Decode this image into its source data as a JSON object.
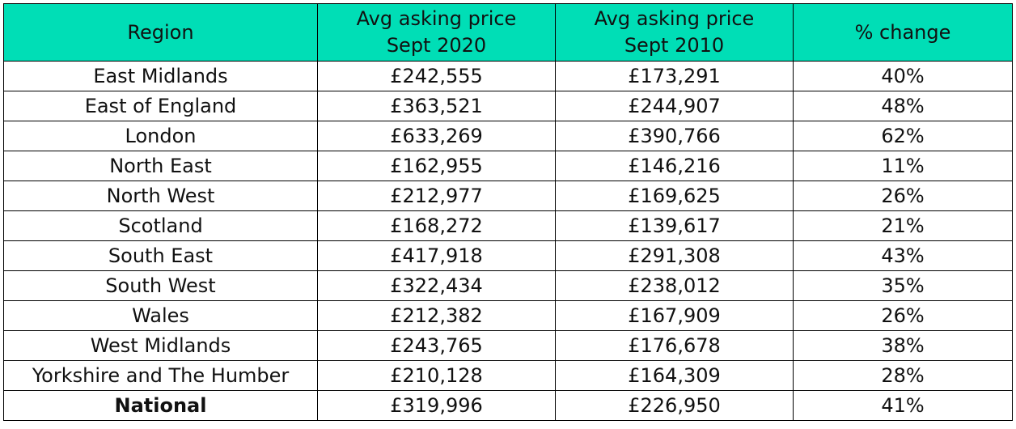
{
  "table": {
    "headers": [
      {
        "line1": "Region",
        "line2": ""
      },
      {
        "line1": "Avg asking price",
        "line2": "Sept 2020"
      },
      {
        "line1": "Avg asking price",
        "line2": "Sept 2010"
      },
      {
        "line1": "% change",
        "line2": ""
      }
    ],
    "rows": [
      {
        "region": "East Midlands",
        "price_2020": "£242,555",
        "price_2010": "£173,291",
        "change": "40%"
      },
      {
        "region": "East of England",
        "price_2020": "£363,521",
        "price_2010": "£244,907",
        "change": "48%"
      },
      {
        "region": "London",
        "price_2020": "£633,269",
        "price_2010": "£390,766",
        "change": "62%"
      },
      {
        "region": "North East",
        "price_2020": "£162,955",
        "price_2010": "£146,216",
        "change": "11%"
      },
      {
        "region": "North West",
        "price_2020": "£212,977",
        "price_2010": "£169,625",
        "change": "26%"
      },
      {
        "region": "Scotland",
        "price_2020": "£168,272",
        "price_2010": "£139,617",
        "change": "21%"
      },
      {
        "region": "South East",
        "price_2020": "£417,918",
        "price_2010": "£291,308",
        "change": "43%"
      },
      {
        "region": "South West",
        "price_2020": "£322,434",
        "price_2010": "£238,012",
        "change": "35%"
      },
      {
        "region": "Wales",
        "price_2020": "£212,382",
        "price_2010": "£167,909",
        "change": "26%"
      },
      {
        "region": "West Midlands",
        "price_2020": "£243,765",
        "price_2010": "£176,678",
        "change": "38%"
      },
      {
        "region": "Yorkshire and The Humber",
        "price_2020": "£210,128",
        "price_2010": "£164,309",
        "change": "28%"
      }
    ],
    "total": {
      "region": "National",
      "price_2020": "£319,996",
      "price_2010": "£226,950",
      "change": "41%"
    }
  },
  "colors": {
    "header_background": "#00deb6",
    "border": "#000000",
    "text": "#111111"
  }
}
